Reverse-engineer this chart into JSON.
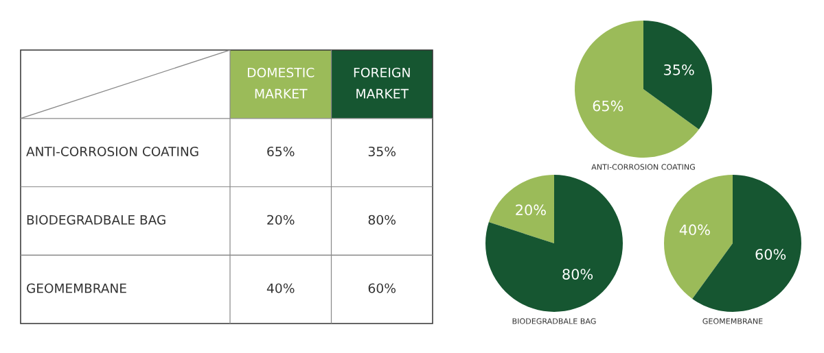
{
  "chart_data": [
    {
      "type": "other",
      "categories": [
        "DOMESTIC MARKET",
        "FOREIGN MARKET"
      ],
      "y_categories": [
        "ANTI-CORROSION COATING",
        "BIODEGRADBALE BAG",
        "GEOMEMBRANE"
      ],
      "colors": [
        "#9bbb59",
        "#165631"
      ],
      "cell_labels": [
        [
          "65%",
          "35%"
        ],
        [
          "20%",
          "80%"
        ],
        [
          "40%",
          "60%"
        ]
      ]
    },
    {
      "type": "pie",
      "title": "ANTI-CORROSION COATING",
      "categories": [
        null,
        null
      ],
      "values": [
        65,
        35
      ],
      "colors": [
        "#9bbb59",
        "#165631"
      ],
      "value_labels": [
        "65%",
        "35%"
      ]
    },
    {
      "type": "pie",
      "title": "BIODEGRADBALE BAG",
      "categories": [
        null,
        null
      ],
      "values": [
        20,
        80
      ],
      "colors": [
        "#9bbb59",
        "#165631"
      ],
      "value_labels": [
        "20%",
        "80%"
      ]
    },
    {
      "type": "pie",
      "title": "GEOMEMBRANE",
      "categories": [
        null,
        null
      ],
      "values": [
        40,
        60
      ],
      "colors": [
        "#9bbb59",
        "#165631"
      ],
      "value_labels": [
        "40%",
        "60%"
      ]
    }
  ]
}
